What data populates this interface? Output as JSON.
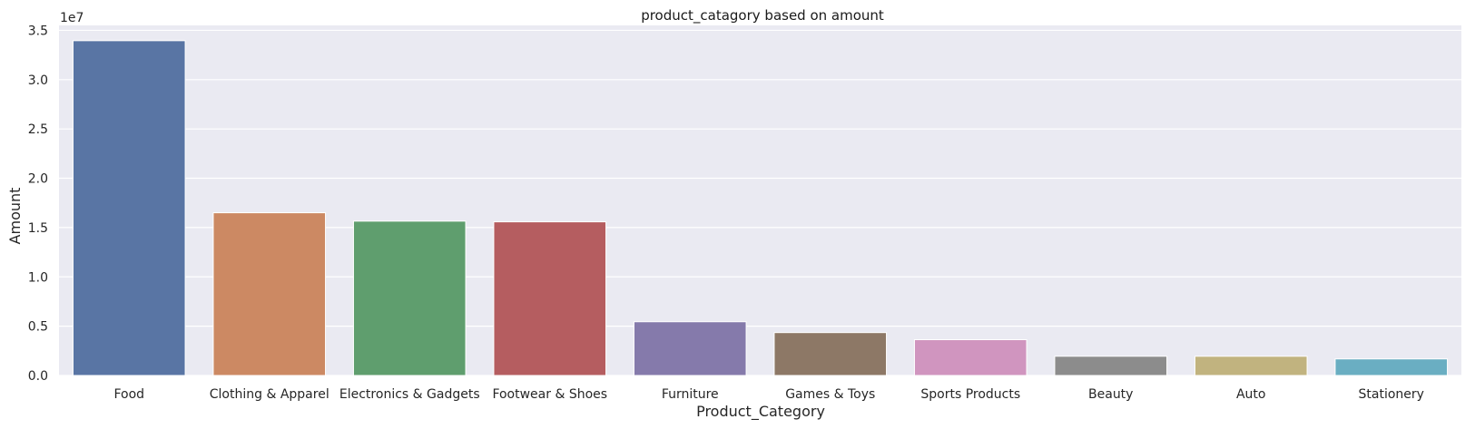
{
  "chart_data": {
    "type": "bar",
    "title": "product_catagory based on amount",
    "xlabel": "Product_Category",
    "ylabel": "Amount",
    "y_offset_label": "1e7",
    "y_scale": 10000000,
    "categories": [
      "Food",
      "Clothing & Apparel",
      "Electronics & Gadgets",
      "Footwear & Shoes",
      "Furniture",
      "Games & Toys",
      "Sports Products",
      "Beauty",
      "Auto",
      "Stationery"
    ],
    "values": [
      33950000,
      16500000,
      15650000,
      15580000,
      5450000,
      4350000,
      3630000,
      1950000,
      1950000,
      1680000
    ],
    "ylim": [
      0,
      35500000
    ],
    "yticks": [
      0,
      5000000,
      10000000,
      15000000,
      20000000,
      25000000,
      30000000,
      35000000
    ],
    "ytick_labels": [
      "0.0",
      "0.5",
      "1.0",
      "1.5",
      "2.0",
      "2.5",
      "3.0",
      "3.5"
    ],
    "colors": [
      "#5975a4",
      "#cc8963",
      "#5f9e6e",
      "#b55d60",
      "#857aab",
      "#8d7866",
      "#d095bf",
      "#8c8c8c",
      "#c1b37f",
      "#6aaec2"
    ],
    "plot_background": "#eaeaf2",
    "grid": true,
    "grid_axis": "y",
    "legend": "none"
  }
}
